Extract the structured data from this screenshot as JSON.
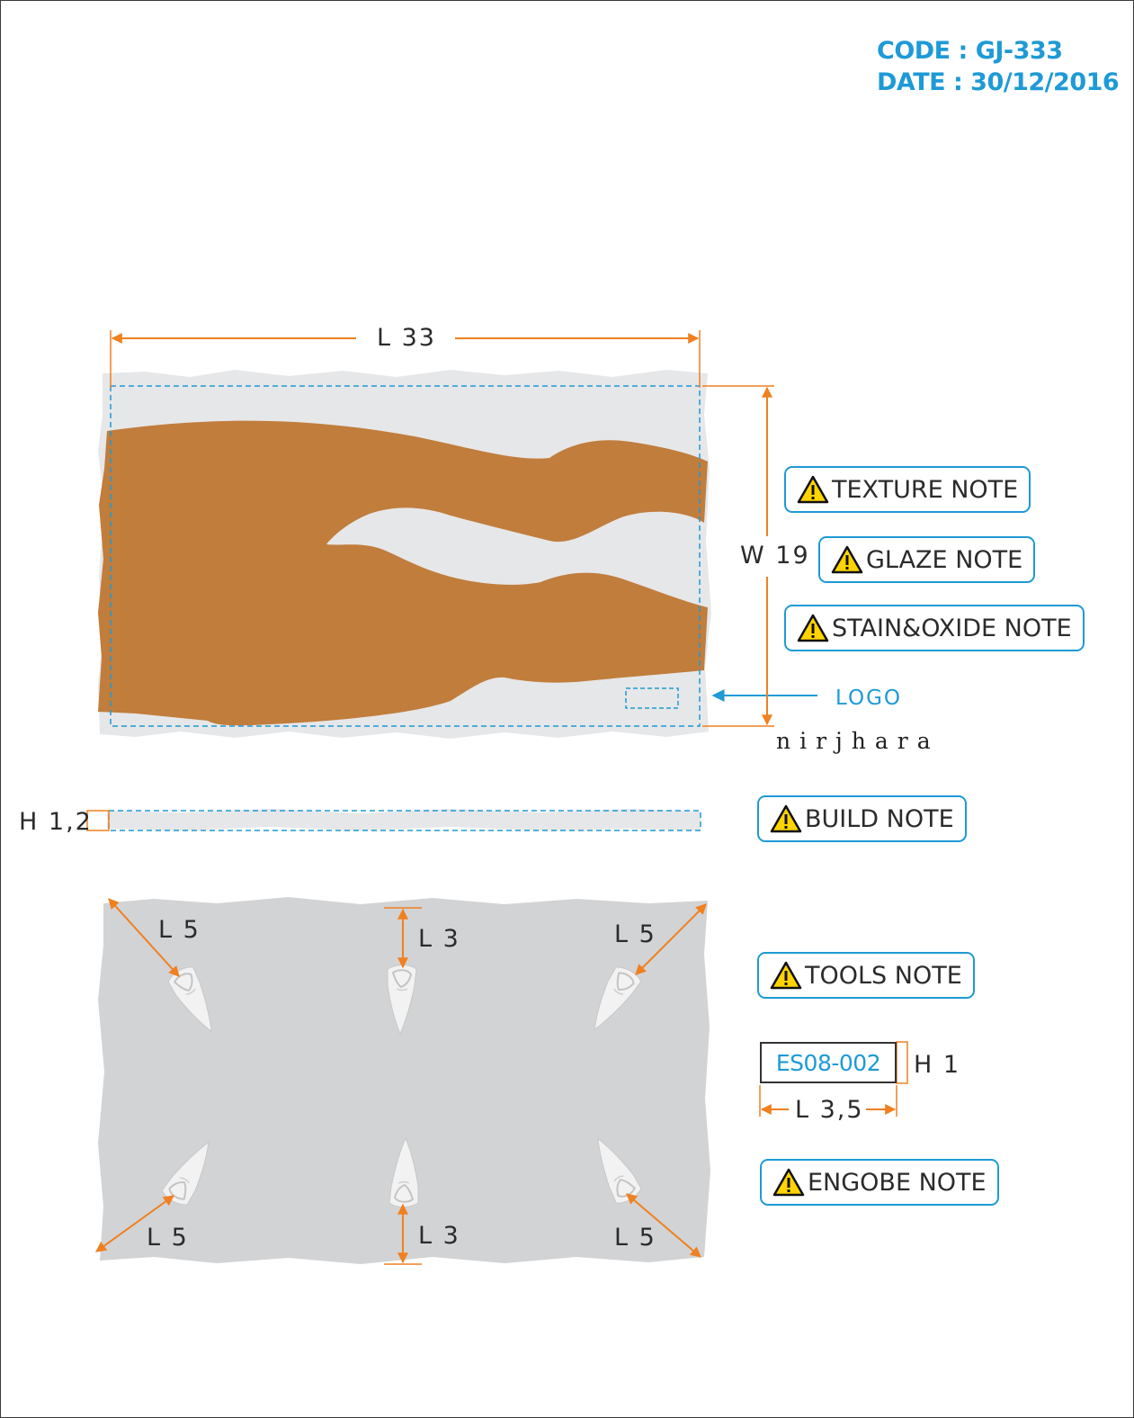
{
  "header": {
    "code": "CODE : GJ-333",
    "date": "DATE : 30/12/2016"
  },
  "dimensions": {
    "length": "L 33",
    "width": "W 19",
    "height": "H 1,2",
    "tool_top_left": "L 5",
    "tool_top_center": "L 3",
    "tool_top_right": "L 5",
    "tool_bottom_left": "L 5",
    "tool_bottom_center": "L 3",
    "tool_bottom_right": "L 5"
  },
  "notes": {
    "texture": "TEXTURE NOTE",
    "glaze": "GLAZE NOTE",
    "stain_oxide": "STAIN&OXIDE NOTE",
    "build": "BUILD NOTE",
    "tools": "TOOLS NOTE",
    "engobe": "ENGOBE NOTE"
  },
  "logo": {
    "label": "LOGO",
    "brand": "nirjhara"
  },
  "stamp": {
    "code": "ES08-002",
    "height": "H 1",
    "length": "L 3,5"
  },
  "colors": {
    "glaze_brown": "#c17d3c",
    "clay_grey": "#e6e7e9",
    "dimension_orange": "#f08020",
    "guide_blue": "#1e9ad6",
    "warning_yellow": "#ffd400"
  },
  "icons": {
    "note_icon": "warning-triangle-icon",
    "logo_pointer": "arrow-left-icon"
  }
}
